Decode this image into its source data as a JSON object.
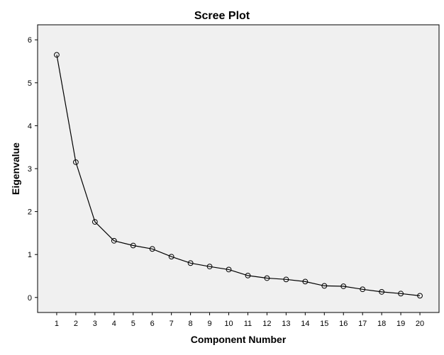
{
  "chart_data": {
    "type": "line",
    "title": "Scree Plot",
    "xlabel": "Component Number",
    "ylabel": "Eigenvalue",
    "x": [
      1,
      2,
      3,
      4,
      5,
      6,
      7,
      8,
      9,
      10,
      11,
      12,
      13,
      14,
      15,
      16,
      17,
      18,
      19,
      20
    ],
    "y": [
      5.65,
      3.15,
      1.76,
      1.32,
      1.21,
      1.13,
      0.95,
      0.8,
      0.72,
      0.65,
      0.51,
      0.45,
      0.42,
      0.37,
      0.27,
      0.26,
      0.19,
      0.13,
      0.09,
      0.04
    ],
    "xlim": [
      0,
      21
    ],
    "ylim": [
      -0.35,
      6.35
    ],
    "yticks": [
      0,
      1,
      2,
      3,
      4,
      5,
      6
    ],
    "xticks": [
      1,
      2,
      3,
      4,
      5,
      6,
      7,
      8,
      9,
      10,
      11,
      12,
      13,
      14,
      15,
      16,
      17,
      18,
      19,
      20
    ],
    "plot_background": "#f0f0f0",
    "line_color": "#000000",
    "marker": "open-circle",
    "grid": false
  }
}
